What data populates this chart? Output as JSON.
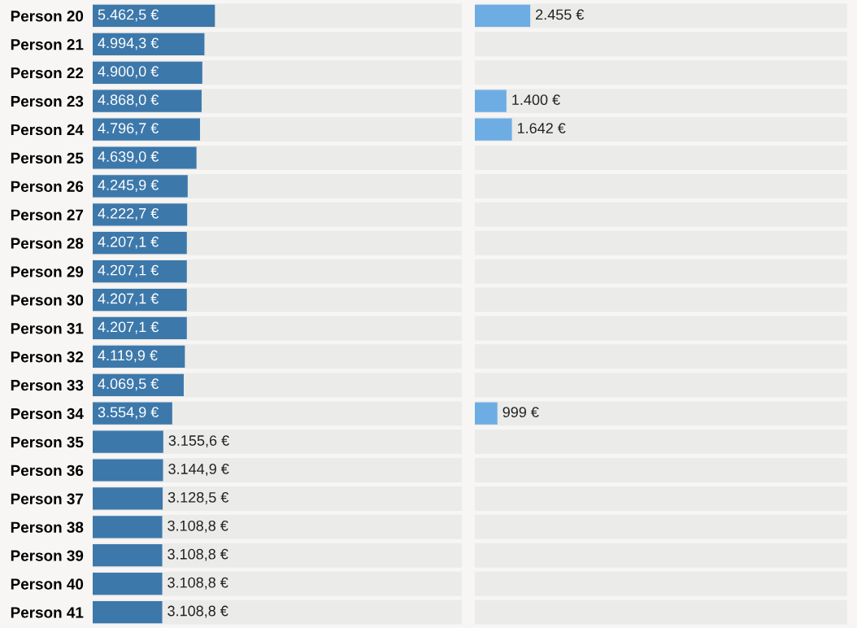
{
  "chart_data": [
    {
      "type": "bar",
      "orientation": "horizontal",
      "categories": [
        "Person 20",
        "Person 21",
        "Person 22",
        "Person 23",
        "Person 24",
        "Person 25",
        "Person 26",
        "Person 27",
        "Person 28",
        "Person 29",
        "Person 30",
        "Person 31",
        "Person 32",
        "Person 33",
        "Person 34",
        "Person 35",
        "Person 36",
        "Person 37",
        "Person 38",
        "Person 39",
        "Person 40",
        "Person 41"
      ],
      "series": [
        {
          "color": "#3d78ab",
          "values": [
            5462.5,
            4994.3,
            4900.0,
            4868.0,
            4796.7,
            4639.0,
            4245.9,
            4222.7,
            4207.1,
            4207.1,
            4207.1,
            4207.1,
            4119.9,
            4069.5,
            3554.9,
            3155.6,
            3144.9,
            3128.5,
            3108.8,
            3108.8,
            3108.8,
            3108.8
          ],
          "value_labels": [
            "5.462,5 €",
            "4.994,3 €",
            "4.900,0 €",
            "4.868,0 €",
            "4.796,7 €",
            "4.639,0 €",
            "4.245,9 €",
            "4.222,7 €",
            "4.207,1 €",
            "4.207,1 €",
            "4.207,1 €",
            "4.207,1 €",
            "4.119,9 €",
            "4.069,5 €",
            "3.554,9 €",
            "3.155,6 €",
            "3.144,9 €",
            "3.128,5 €",
            "3.108,8 €",
            "3.108,8 €",
            "3.108,8 €",
            "3.108,8 €"
          ]
        }
      ],
      "xlim": [
        0,
        16500
      ],
      "tick_labels": "y",
      "grid": false,
      "legend": false
    },
    {
      "type": "bar",
      "orientation": "horizontal",
      "categories": [
        null,
        null,
        null,
        null,
        null,
        null,
        null,
        null,
        null,
        null,
        null,
        null,
        null,
        null,
        null,
        null,
        null,
        null,
        null,
        null,
        null,
        null
      ],
      "series": [
        {
          "color": "#6eade3",
          "values": [
            2455,
            null,
            null,
            1400,
            1642,
            null,
            null,
            null,
            null,
            null,
            null,
            null,
            null,
            null,
            999,
            null,
            null,
            null,
            null,
            null,
            null,
            null
          ],
          "value_labels": [
            "2.455 €",
            null,
            null,
            "1.400 €",
            "1.642 €",
            null,
            null,
            null,
            null,
            null,
            null,
            null,
            null,
            null,
            "999 €",
            null,
            null,
            null,
            null,
            null,
            null,
            null
          ]
        }
      ],
      "xlim": [
        0,
        16500
      ],
      "tick_labels": false,
      "grid": false,
      "legend": false
    }
  ]
}
